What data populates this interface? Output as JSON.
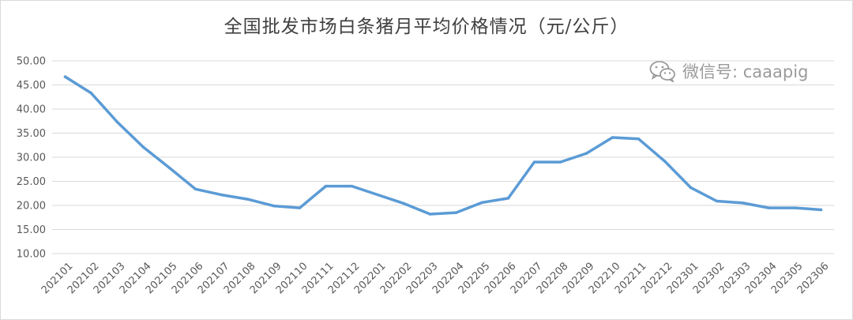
{
  "watermark": {
    "text": "微信号: caaapig",
    "icon": "wechat-icon"
  },
  "colors": {
    "series": "#5b9bd5",
    "grid": "#d9d9d9",
    "text": "#595959"
  },
  "chart_data": {
    "type": "line",
    "title": "全国批发市场白条猪月平均价格情况（元/公斤）",
    "xlabel": "",
    "ylabel": "",
    "ylim": [
      10,
      50
    ],
    "yticks": [
      "10.00",
      "15.00",
      "20.00",
      "25.00",
      "30.00",
      "35.00",
      "40.00",
      "45.00",
      "50.00"
    ],
    "grid": true,
    "legend": "none",
    "categories": [
      "202101",
      "202102",
      "202103",
      "202104",
      "202105",
      "202106",
      "202107",
      "202108",
      "202109",
      "202110",
      "202111",
      "202112",
      "202201",
      "202202",
      "202203",
      "202204",
      "202205",
      "202206",
      "202207",
      "202208",
      "202209",
      "202210",
      "202211",
      "202212",
      "202301",
      "202302",
      "202303",
      "202304",
      "202305",
      "202306"
    ],
    "series": [
      {
        "values": [
          46.7,
          43.3,
          37.3,
          32.1,
          27.8,
          23.4,
          22.2,
          21.3,
          19.9,
          19.5,
          24.0,
          24.0,
          22.2,
          20.4,
          18.2,
          18.5,
          20.6,
          21.5,
          29.0,
          29.0,
          30.8,
          34.1,
          33.8,
          29.2,
          23.7,
          20.9,
          20.5,
          19.5,
          19.5,
          19.1
        ]
      }
    ]
  }
}
